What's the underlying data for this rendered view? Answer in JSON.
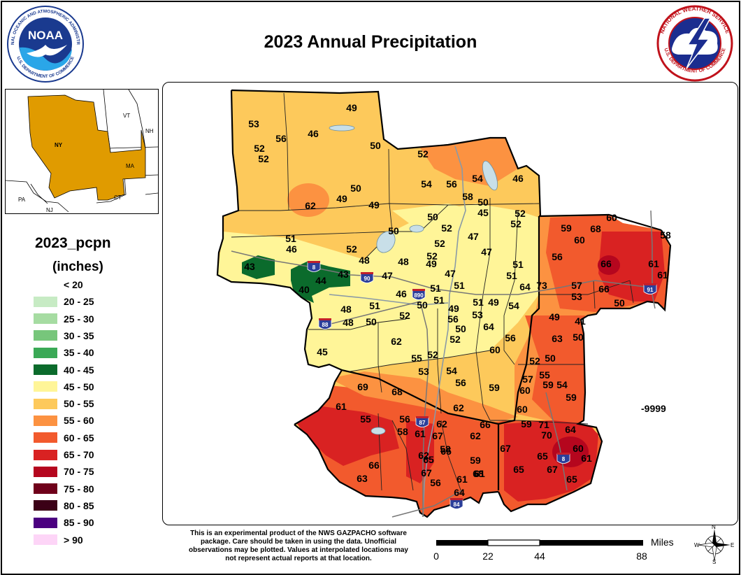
{
  "title": "2023 Annual Precipitation",
  "logos": {
    "noaa": {
      "center": "noaa",
      "ring_text": "NATIONAL OCEANIC AND ATMOSPHERIC ADMINISTRATION",
      "bottom_text": "U.S. DEPARTMENT OF COMMERCE"
    },
    "nws": {
      "ring_text": "NATIONAL WEATHER SERVICE",
      "bottom_text": "U.S. DEPARTMENT OF COMMERCE"
    }
  },
  "inset": {
    "states": [
      "VT",
      "NH",
      "NY",
      "MA",
      "CT",
      "PA",
      "NJ"
    ],
    "highlight_color": "#e09b00"
  },
  "legend": {
    "title": "2023_pcpn",
    "units": "(inches)",
    "bins": [
      {
        "label": "< 20",
        "color": ""
      },
      {
        "label": "20 - 25",
        "color": "#c7ebc4"
      },
      {
        "label": "25 - 30",
        "color": "#a6dca2"
      },
      {
        "label": "30 - 35",
        "color": "#77c67b"
      },
      {
        "label": "35 - 40",
        "color": "#3aa956"
      },
      {
        "label": "40 - 45",
        "color": "#0b6b2c"
      },
      {
        "label": "45 - 50",
        "color": "#fff598"
      },
      {
        "label": "50 - 55",
        "color": "#fdc95b"
      },
      {
        "label": "55 - 60",
        "color": "#fc9241"
      },
      {
        "label": "60 - 65",
        "color": "#f25a2d"
      },
      {
        "label": "65 - 70",
        "color": "#d92222"
      },
      {
        "label": "70 - 75",
        "color": "#b5061e"
      },
      {
        "label": "75 - 80",
        "color": "#6f001a"
      },
      {
        "label": "80 - 85",
        "color": "#3b0016"
      },
      {
        "label": "85 - 90",
        "color": "#4b0080"
      },
      {
        "label": "> 90",
        "color": "#fdd5f7"
      }
    ]
  },
  "map": {
    "no_data_label": "-9999",
    "interstate_shields": [
      "8",
      "90",
      "890",
      "88",
      "87",
      "84",
      "91",
      "8"
    ],
    "station_values": [
      "49",
      "53",
      "56",
      "46",
      "52",
      "52",
      "50",
      "52",
      "54",
      "56",
      "54",
      "46",
      "58",
      "50",
      "45",
      "52",
      "52",
      "62",
      "49",
      "50",
      "49",
      "50",
      "52",
      "51",
      "46",
      "50",
      "52",
      "47",
      "59",
      "68",
      "60",
      "60",
      "52",
      "48",
      "48",
      "52",
      "49",
      "47",
      "47",
      "56",
      "66",
      "61",
      "58",
      "61",
      "43",
      "44",
      "43",
      "40",
      "47",
      "46",
      "51",
      "51",
      "51",
      "51",
      "64",
      "73",
      "57",
      "66",
      "53",
      "50",
      "51",
      "49",
      "51",
      "50",
      "54",
      "48",
      "48",
      "50",
      "52",
      "53",
      "49",
      "51",
      "56",
      "64",
      "49",
      "41",
      "50",
      "52",
      "56",
      "62",
      "63",
      "50",
      "45",
      "52",
      "55",
      "60",
      "52",
      "50",
      "53",
      "54",
      "56",
      "59",
      "57",
      "60",
      "55",
      "59",
      "54",
      "59",
      "69",
      "68",
      "62",
      "60",
      "61",
      "55",
      "56",
      "58",
      "61",
      "62",
      "67",
      "62",
      "66",
      "59",
      "71",
      "70",
      "64",
      "67",
      "62",
      "65",
      "65",
      "60",
      "61",
      "66",
      "63",
      "65",
      "58",
      "59",
      "61",
      "67",
      "65",
      "67",
      "56",
      "61",
      "64",
      "68",
      "65"
    ]
  },
  "disclaimer": "This is an experimental product of the NWS GAZPACHO software package. Care should be taken in using the data. Unofficial observations may be plotted. Values at interpolated locations may not represent actual reports at that location.",
  "scale_bar": {
    "unit_label": "Miles",
    "ticks": [
      "0",
      "22",
      "44",
      "88"
    ]
  },
  "compass": {
    "n": "N",
    "s": "S",
    "e": "E",
    "w": "W"
  }
}
